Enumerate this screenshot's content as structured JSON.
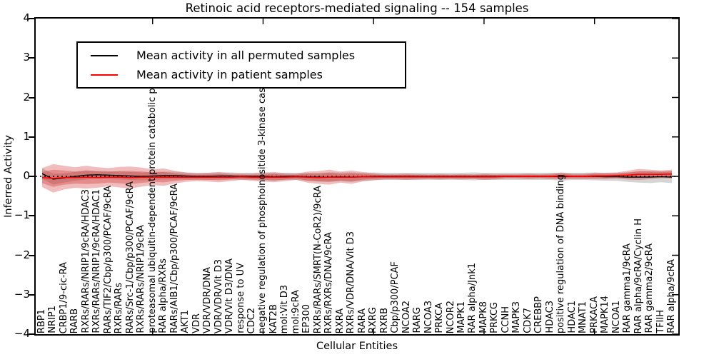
{
  "chart_data": {
    "type": "line",
    "title": "Retinoic acid receptors-mediated signaling -- 154 samples",
    "xlabel": "Cellular Entities",
    "ylabel": "Inferred Activity",
    "ylim": [
      -4,
      4
    ],
    "yticks": [
      4,
      3,
      2,
      1,
      0,
      -1,
      -2,
      -3,
      -4
    ],
    "ytick_labels": [
      "4",
      "3",
      "2",
      "1",
      "0",
      "−1",
      "−2",
      "−3",
      "−4"
    ],
    "grid": false,
    "legend_position": "upper left",
    "zero_reference_line": {
      "style": "dotted",
      "color": "#000000",
      "y": 0
    },
    "categories": [
      "RBP1",
      "NRIP1",
      "CRBP1/9-cic-RA",
      "RARB",
      "RXRs/RARs/NRIP1/9cRA/HDAC3",
      "RXRs/RARs/NRIP1/9cRA/HDAC1",
      "RARs/TIF2/Cbp/p300/PCAF/9cRA",
      "RXRs/RARs",
      "RARs/Src-1/Cbp/p300/PCAF/9cRA",
      "RXRs/RARs/NRIP1/9cRA",
      "proteasomal ubiquitin-dependent protein catabolic pr",
      "RAR alpha/RXRs",
      "RARs/AIB1/Cbp/p300/PCAF/9cRA",
      "AKT1",
      "VDR",
      "VDR/VDR/DNA",
      "VDR/VDR/Vit D3",
      "VDR/Vit D3/DNA",
      "response to UV",
      "CDC2",
      "negative regulation of phosphoinositide 3-kinase casc",
      "KAT2B",
      "mol:Vit D3",
      "mol:9cRA",
      "EP300",
      "RXRs/RARs/SMRT(N-CoR2)/9cRA",
      "RXRs/RXRs/DNA/9cRA",
      "RXRA",
      "RXRs/VDR/DNA/Vit D3",
      "RARA",
      "RXRG",
      "RXRB",
      "Cbp/p300/PCAF",
      "NCOA2",
      "RARG",
      "NCOA3",
      "PRKCA",
      "NCOR2",
      "MAPK1",
      "RAR alpha/Jnk1",
      "MAPK8",
      "PRKCG",
      "CCNH",
      "MAPK3",
      "CDK7",
      "CREBBP",
      "HDAC3",
      "positive regulation of DNA binding",
      "HDAC1",
      "MNAT1",
      "PRKACA",
      "MAPK14",
      "NCOA1",
      "RAR gamma1/9cRA",
      "RAR alpha/9cRA/Cyclin H",
      "RAR gamma2/9cRA",
      "TFIIH",
      "RAR alpha/9cRA"
    ],
    "legend": [
      {
        "label": "Mean activity in all permuted samples",
        "color": "#000000"
      },
      {
        "label": "Mean activity in patient samples",
        "color": "#ff0000"
      }
    ],
    "series": [
      {
        "name": "Mean activity in all permuted samples",
        "color": "#000000",
        "values": [
          0.07,
          -0.07,
          -0.04,
          0.0,
          0.03,
          0.04,
          0.03,
          0.02,
          0.01,
          0.0,
          0.01,
          0.02,
          0.02,
          0.01,
          0.0,
          0.0,
          0.01,
          0.01,
          0.0,
          0.0,
          0.0,
          -0.01,
          0.0,
          0.0,
          -0.01,
          -0.02,
          -0.02,
          -0.01,
          -0.02,
          -0.01,
          0.0,
          0.0,
          0.0,
          0.0,
          0.0,
          0.0,
          0.0,
          0.0,
          0.0,
          0.0,
          0.0,
          0.0,
          0.0,
          0.0,
          0.0,
          0.0,
          0.0,
          -0.01,
          0.0,
          0.0,
          0.0,
          -0.01,
          -0.01,
          -0.02,
          -0.02,
          -0.02,
          -0.01,
          -0.02
        ],
        "band": [
          0.13,
          0.14,
          0.12,
          0.11,
          0.11,
          0.1,
          0.1,
          0.1,
          0.1,
          0.1,
          0.1,
          0.1,
          0.1,
          0.09,
          0.09,
          0.09,
          0.09,
          0.09,
          0.09,
          0.09,
          0.1,
          0.1,
          0.09,
          0.09,
          0.1,
          0.11,
          0.12,
          0.11,
          0.12,
          0.1,
          0.1,
          0.09,
          0.09,
          0.09,
          0.09,
          0.09,
          0.09,
          0.09,
          0.09,
          0.1,
          0.09,
          0.09,
          0.09,
          0.09,
          0.09,
          0.09,
          0.09,
          0.1,
          0.09,
          0.09,
          0.1,
          0.1,
          0.1,
          0.12,
          0.14,
          0.15,
          0.14,
          0.15
        ],
        "band_color": "#888888"
      },
      {
        "name": "Mean activity in patient samples",
        "color": "#ff0000",
        "values": [
          -0.03,
          -0.05,
          -0.03,
          -0.03,
          -0.02,
          -0.03,
          -0.02,
          -0.02,
          -0.03,
          -0.02,
          -0.02,
          -0.02,
          -0.02,
          -0.02,
          -0.02,
          -0.02,
          -0.02,
          -0.02,
          -0.01,
          -0.02,
          -0.02,
          -0.02,
          -0.02,
          -0.01,
          -0.02,
          -0.03,
          -0.02,
          -0.02,
          -0.02,
          -0.01,
          -0.01,
          -0.01,
          -0.01,
          -0.01,
          -0.01,
          -0.01,
          -0.01,
          -0.01,
          -0.01,
          -0.01,
          -0.01,
          -0.01,
          0.0,
          0.0,
          0.0,
          0.0,
          0.0,
          0.01,
          0.0,
          0.0,
          0.01,
          0.01,
          0.02,
          0.03,
          0.05,
          0.05,
          0.05,
          0.06
        ],
        "band": [
          0.24,
          0.36,
          0.3,
          0.26,
          0.29,
          0.26,
          0.23,
          0.26,
          0.28,
          0.24,
          0.2,
          0.22,
          0.16,
          0.12,
          0.1,
          0.11,
          0.13,
          0.1,
          0.08,
          0.09,
          0.11,
          0.13,
          0.1,
          0.08,
          0.14,
          0.16,
          0.19,
          0.14,
          0.17,
          0.12,
          0.09,
          0.07,
          0.07,
          0.08,
          0.07,
          0.06,
          0.07,
          0.06,
          0.07,
          0.06,
          0.08,
          0.07,
          0.06,
          0.06,
          0.07,
          0.06,
          0.07,
          0.09,
          0.07,
          0.07,
          0.08,
          0.08,
          0.08,
          0.11,
          0.14,
          0.12,
          0.1,
          0.11
        ],
        "band_color": "#cc2222"
      }
    ]
  }
}
